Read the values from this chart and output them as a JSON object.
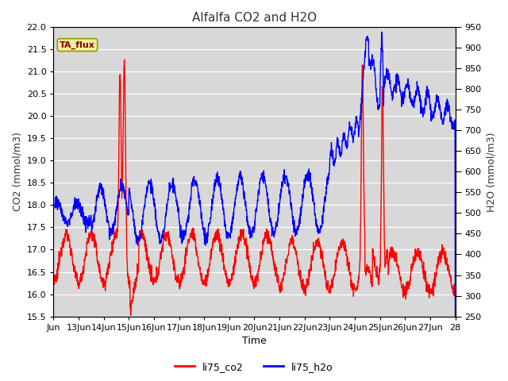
{
  "title": "Alfalfa CO2 and H2O",
  "xlabel": "Time",
  "ylabel_left": "CO2 (mmol/m3)",
  "ylabel_right": "H2O (mmol/m3)",
  "ylim_left": [
    15.5,
    22.0
  ],
  "ylim_right": [
    250,
    950
  ],
  "yticks_left": [
    15.5,
    16.0,
    16.5,
    17.0,
    17.5,
    18.0,
    18.5,
    19.0,
    19.5,
    20.0,
    20.5,
    21.0,
    21.5,
    22.0
  ],
  "yticks_right": [
    250,
    300,
    350,
    400,
    450,
    500,
    550,
    600,
    650,
    700,
    750,
    800,
    850,
    900,
    950
  ],
  "xtick_positions": [
    0,
    1,
    2,
    3,
    4,
    5,
    6,
    7,
    8,
    9,
    10,
    11,
    12,
    13,
    14,
    15,
    16
  ],
  "xtick_labels": [
    "Jun",
    "13Jun",
    "14Jun",
    "15Jun",
    "16Jun",
    "17Jun",
    "18Jun",
    "19Jun",
    "20Jun",
    "21Jun",
    "22Jun",
    "23Jun",
    "24Jun",
    "25Jun",
    "26Jun",
    "27Jun",
    "28"
  ],
  "annotation_text": "TA_flux",
  "annotation_color": "#8B0000",
  "annotation_bg": "#f0f0a0",
  "line_co2_color": "red",
  "line_h2o_color": "blue",
  "line_width": 1.0,
  "legend_co2": "li75_co2",
  "legend_h2o": "li75_h2o",
  "bg_color": "#d8d8d8",
  "title_fontsize": 11,
  "label_fontsize": 9,
  "tick_fontsize": 8
}
